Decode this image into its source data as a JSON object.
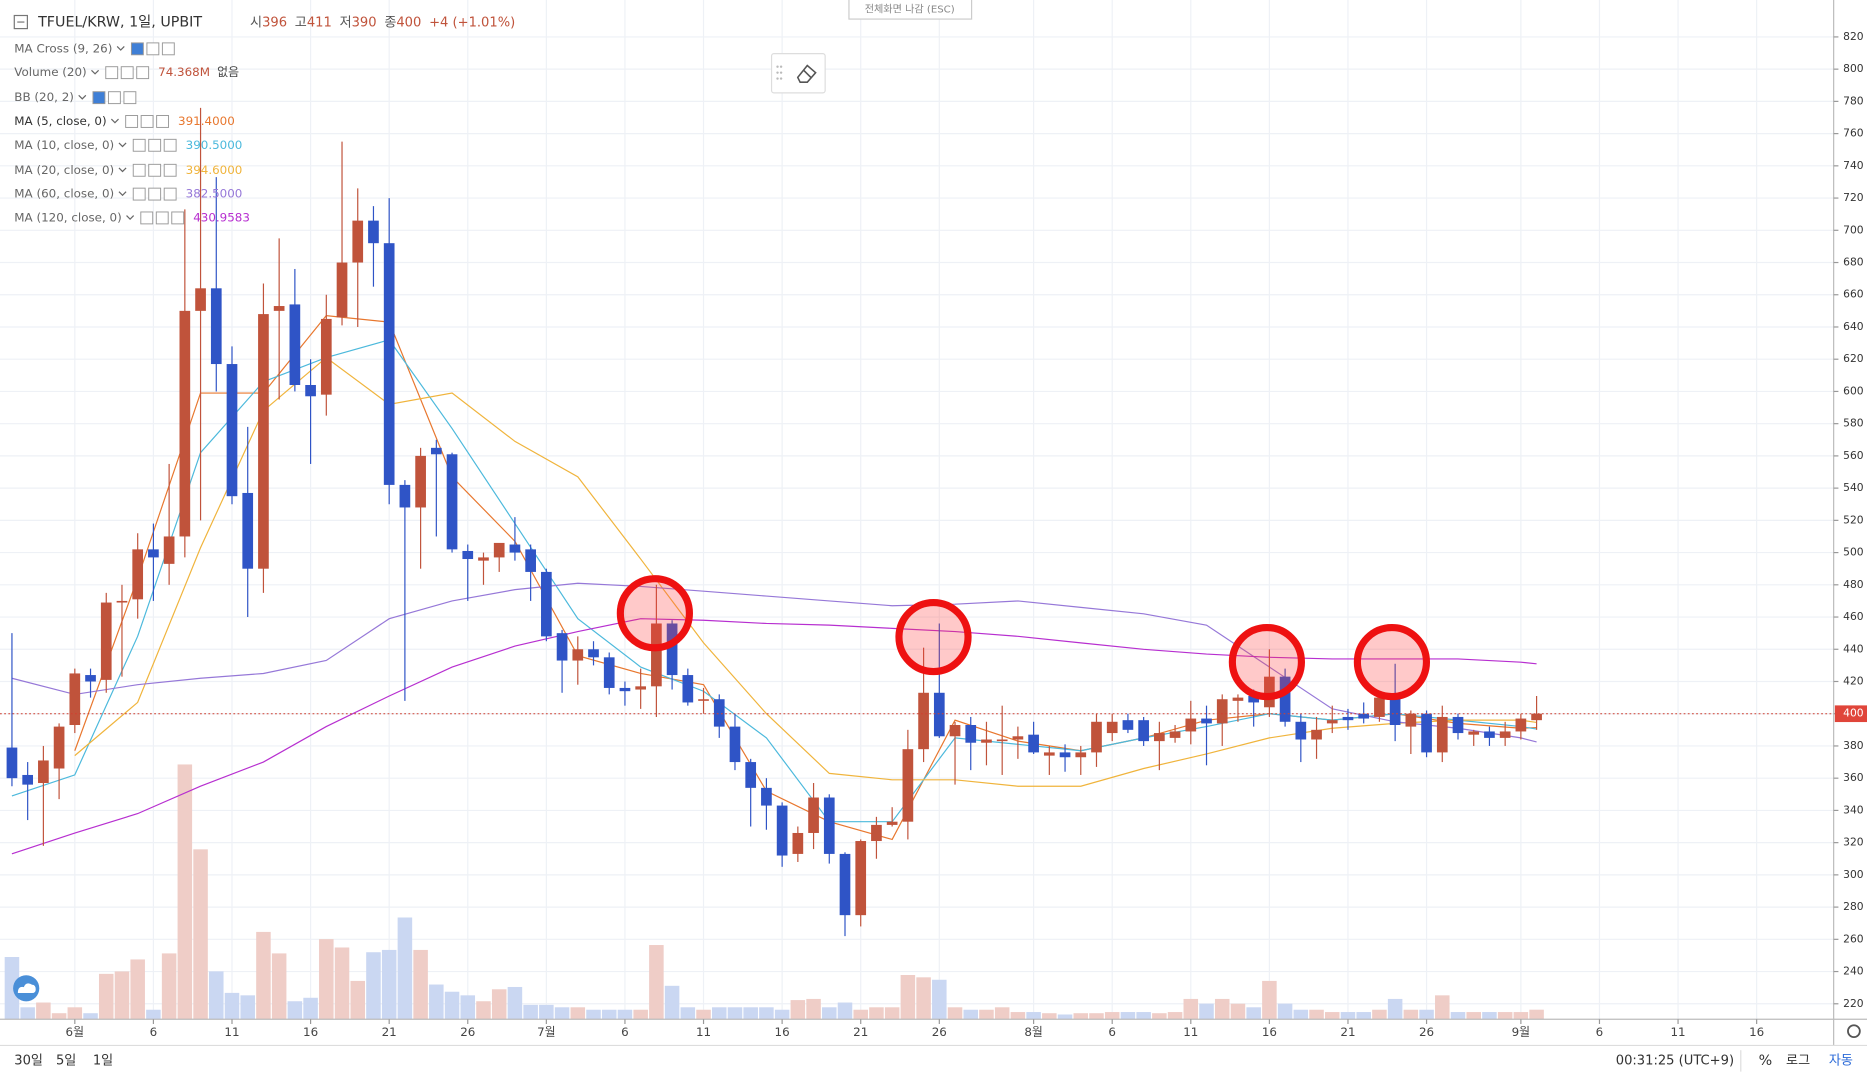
{
  "chart_data": {
    "type": "candlestick",
    "symbol": "TFUEL/KRW, 1일, UPBIT",
    "ohlc_labels": [
      "시",
      "고",
      "저",
      "종"
    ],
    "change": "+4 (+1.01%)",
    "fullscreen_hint": "전체화면 나감 (ESC)",
    "up_color": "#c0533b",
    "down_color": "#2f54c6",
    "up_volume_color": "#efcdc7",
    "down_volume_color": "#cad7f2",
    "grid": true,
    "xlim": [
      -0.76,
      115.9
    ],
    "ylim": [
      210.4,
      842.9
    ],
    "yticks": [
      220,
      240,
      260,
      280,
      300,
      320,
      340,
      360,
      380,
      400,
      420,
      440,
      460,
      480,
      500,
      520,
      540,
      560,
      580,
      600,
      620,
      640,
      660,
      680,
      700,
      720,
      740,
      760,
      780,
      800,
      820
    ],
    "xticks": [
      {
        "value": 4,
        "label": "6월"
      },
      {
        "value": 9,
        "label": "6"
      },
      {
        "value": 14,
        "label": "11"
      },
      {
        "value": 19,
        "label": "16"
      },
      {
        "value": 24,
        "label": "21"
      },
      {
        "value": 29,
        "label": "26"
      },
      {
        "value": 34,
        "label": "7월"
      },
      {
        "value": 39,
        "label": "6"
      },
      {
        "value": 44,
        "label": "11"
      },
      {
        "value": 49,
        "label": "16"
      },
      {
        "value": 54,
        "label": "21"
      },
      {
        "value": 59,
        "label": "26"
      },
      {
        "value": 65,
        "label": "8월"
      },
      {
        "value": 70,
        "label": "6"
      },
      {
        "value": 75,
        "label": "11"
      },
      {
        "value": 80,
        "label": "16"
      },
      {
        "value": 85,
        "label": "21"
      },
      {
        "value": 90,
        "label": "26"
      },
      {
        "value": 96,
        "label": "9월"
      },
      {
        "value": 101,
        "label": "6"
      },
      {
        "value": 106,
        "label": "11"
      },
      {
        "value": 111,
        "label": "16"
      }
    ],
    "open": [
      379,
      362,
      357,
      366,
      393,
      424,
      421,
      469,
      471,
      502,
      493,
      510,
      650,
      664,
      617,
      537,
      490,
      650,
      654,
      604,
      598,
      646,
      680,
      706,
      692,
      542,
      528,
      565,
      561,
      501,
      495,
      497,
      505,
      502,
      488,
      450,
      433,
      440,
      435,
      416,
      415,
      417,
      456,
      424,
      408,
      409,
      392,
      370,
      354,
      343,
      313,
      326,
      348,
      313,
      275,
      321,
      331,
      333,
      378,
      413,
      386,
      393,
      382,
      383,
      384,
      387,
      374,
      376,
      373,
      376,
      388,
      396,
      396,
      383,
      385,
      389,
      397,
      394,
      408,
      411,
      404,
      423,
      395,
      384,
      394,
      398,
      400,
      398,
      410,
      392,
      400,
      376,
      398,
      387,
      389,
      385,
      389,
      396
    ],
    "high": [
      450,
      370,
      380,
      394,
      428,
      428,
      475,
      480,
      512,
      518,
      555,
      713,
      776,
      733,
      628,
      578,
      667,
      695,
      676,
      620,
      660,
      755,
      726,
      715,
      720,
      545,
      565,
      570,
      562,
      505,
      500,
      505,
      522,
      505,
      490,
      452,
      448,
      445,
      438,
      420,
      428,
      480,
      458,
      428,
      416,
      412,
      400,
      372,
      360,
      345,
      330,
      357,
      350,
      314,
      322,
      336,
      342,
      390,
      441,
      456,
      395,
      398,
      395,
      405,
      392,
      395,
      380,
      381,
      380,
      400,
      400,
      400,
      398,
      395,
      393,
      408,
      405,
      412,
      412,
      415,
      440,
      428,
      400,
      398,
      405,
      403,
      407,
      413,
      431,
      402,
      402,
      405,
      400,
      390,
      392,
      395,
      400,
      411
    ],
    "low": [
      355,
      334,
      318,
      347,
      388,
      410,
      413,
      423,
      459,
      470,
      480,
      497,
      520,
      600,
      530,
      460,
      475,
      595,
      600,
      555,
      585,
      641,
      640,
      665,
      530,
      408,
      490,
      510,
      500,
      470,
      480,
      488,
      495,
      470,
      445,
      413,
      418,
      430,
      412,
      405,
      403,
      398,
      415,
      405,
      400,
      385,
      365,
      330,
      328,
      305,
      308,
      316,
      307,
      262,
      268,
      310,
      330,
      322,
      370,
      385,
      356,
      365,
      368,
      362,
      372,
      375,
      362,
      364,
      362,
      367,
      383,
      388,
      380,
      365,
      382,
      381,
      368,
      380,
      395,
      392,
      398,
      392,
      370,
      372,
      388,
      390,
      394,
      395,
      383,
      375,
      373,
      370,
      384,
      380,
      380,
      380,
      384,
      390
    ],
    "close": [
      360,
      356,
      371,
      392,
      425,
      420,
      469,
      470,
      502,
      497,
      510,
      650,
      664,
      617,
      535,
      490,
      648,
      653,
      604,
      597,
      645,
      680,
      706,
      692,
      542,
      528,
      560,
      561,
      502,
      496,
      497,
      506,
      500,
      488,
      448,
      433,
      440,
      435,
      416,
      414,
      417,
      456,
      424,
      407,
      409,
      392,
      370,
      354,
      343,
      312,
      326,
      348,
      313,
      275,
      321,
      331,
      333,
      378,
      413,
      386,
      393,
      382,
      384,
      384,
      386,
      376,
      376,
      373,
      376,
      395,
      395,
      390,
      383,
      388,
      389,
      397,
      394,
      409,
      410,
      407,
      423,
      395,
      384,
      390,
      396,
      396,
      397,
      410,
      393,
      400,
      376,
      398,
      388,
      389,
      385,
      389,
      397,
      400
    ],
    "volume": [
      484,
      93,
      130,
      47,
      93,
      47,
      353,
      372,
      465,
      74,
      512,
      1981,
      1321,
      372,
      205,
      186,
      679,
      512,
      140,
      167,
      623,
      558,
      298,
      521,
      539,
      791,
      539,
      270,
      214,
      186,
      140,
      233,
      251,
      112,
      112,
      93,
      93,
      74,
      74,
      74,
      74,
      577,
      260,
      93,
      74,
      93,
      93,
      93,
      93,
      74,
      149,
      158,
      93,
      130,
      74,
      93,
      93,
      344,
      326,
      307,
      93,
      74,
      74,
      93,
      56,
      56,
      47,
      37,
      47,
      47,
      56,
      56,
      56,
      47,
      56,
      158,
      121,
      158,
      121,
      93,
      298,
      121,
      74,
      74,
      56,
      56,
      56,
      74,
      158,
      74,
      74,
      186,
      56,
      56,
      56,
      56,
      56,
      74.368
    ],
    "volume_value_label": "74.368M",
    "volume_extra": "없음",
    "indicators": [
      {
        "name": "MA Cross (9, 26)"
      },
      {
        "name": "Volume (20)"
      },
      {
        "name": "BB (20, 2)"
      }
    ],
    "ma_x": [
      0,
      4,
      8,
      12,
      16,
      20,
      24,
      28,
      32,
      36,
      40,
      44,
      48,
      52,
      56,
      60,
      64,
      68,
      72,
      76,
      80,
      84,
      88,
      92,
      96,
      97
    ],
    "ma_series": [
      {
        "name": "MA (5, close, 0)",
        "color": "#e8772e",
        "value_label": "391.4000",
        "values": [
          null,
          377,
          484,
          599,
          599,
          647,
          643,
          547,
          507,
          436,
          425,
          418,
          352,
          333,
          322,
          396,
          383,
          377,
          385,
          396,
          400,
          396,
          400,
          394,
          391,
          391.4
        ]
      },
      {
        "name": "MA (10, close, 0)",
        "color": "#4cb9dc",
        "value_label": "390.5000",
        "values": [
          349,
          362,
          448,
          562,
          606,
          621,
          632,
          577,
          518,
          459,
          429,
          414,
          385,
          333,
          333,
          385,
          381,
          377,
          385,
          392,
          400,
          396,
          400,
          396,
          392,
          390.5
        ]
      },
      {
        "name": "MA (20, close, 0)",
        "color": "#f0b43c",
        "value_label": "394.6000",
        "values": [
          null,
          374,
          407,
          503,
          588,
          621,
          592,
          599,
          569,
          547,
          496,
          444,
          400,
          363,
          359,
          359,
          355,
          355,
          366,
          375,
          385,
          391,
          394,
          396,
          396,
          394.6
        ]
      },
      {
        "name": "MA (60, close, 0)",
        "color": "#9678d8",
        "value_label": "382.5000",
        "values": [
          422,
          412,
          418,
          422,
          425,
          433,
          459,
          470,
          477,
          481,
          479,
          476,
          473,
          470,
          467,
          468,
          470,
          466,
          462,
          455,
          429,
          403,
          395,
          391,
          385,
          382.5
        ]
      },
      {
        "name": "MA (120, close, 0)",
        "color": "#b72fd0",
        "value_label": "430.9583",
        "values": [
          313,
          326,
          338,
          355,
          370,
          392,
          411,
          429,
          442,
          451,
          459,
          458,
          456,
          455,
          453,
          451,
          448,
          444,
          440,
          437,
          435,
          434,
          434,
          434,
          432,
          430.9583
        ]
      }
    ],
    "toolbar": {
      "ranges": [
        "30일",
        "5일",
        "1일"
      ],
      "time": "00:31:25 (UTC+9)",
      "percent": "%",
      "log": "로그",
      "auto": "자동"
    }
  }
}
